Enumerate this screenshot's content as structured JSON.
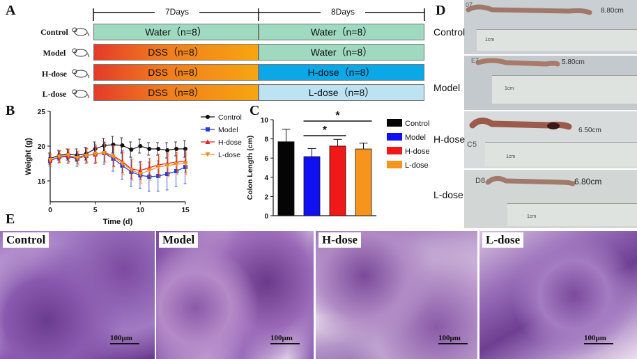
{
  "panels": {
    "a": "A",
    "b": "B",
    "c": "C",
    "d": "D",
    "e": "E"
  },
  "design": {
    "periods": [
      "7Days",
      "8Days"
    ],
    "rows": [
      {
        "group": "Control",
        "phase1": "Water（n=8）",
        "phase2": "Water（n=8）"
      },
      {
        "group": "Model",
        "phase1": "DSS（n=8）",
        "phase2": "Water（n=8）"
      },
      {
        "group": "H-dose",
        "phase1": "DSS（n=8）",
        "phase2": "H-dose（n=8）"
      },
      {
        "group": "L-dose",
        "phase1": "DSS（n=8）",
        "phase2": "L-dose（n=8）"
      }
    ]
  },
  "chart_data": [
    {
      "type": "line",
      "xlabel": "Time  (d)",
      "ylabel": "Weight  (g)",
      "xlim": [
        0,
        15
      ],
      "ylim": [
        12,
        25
      ],
      "xticks": [
        0,
        5,
        10,
        15
      ],
      "yticks": [
        15,
        20,
        25
      ],
      "x": [
        0,
        1,
        2,
        3,
        4,
        5,
        6,
        7,
        8,
        9,
        10,
        11,
        12,
        13,
        14,
        15
      ],
      "legend_position": "right",
      "series": [
        {
          "name": "Control",
          "color": "#111111",
          "marker": "circle",
          "values": [
            18.2,
            18.7,
            18.8,
            18.7,
            18.9,
            19.6,
            20.1,
            20.2,
            20.1,
            19.5,
            20.0,
            19.6,
            19.6,
            19.4,
            19.6,
            19.6
          ],
          "errors": [
            0.8,
            0.7,
            0.8,
            0.9,
            0.9,
            1.0,
            1.0,
            1.2,
            1.1,
            1.1,
            1.0,
            0.9,
            0.9,
            1.1,
            1.0,
            1.2
          ]
        },
        {
          "name": "Model",
          "color": "#1a3fd6",
          "marker": "square",
          "values": [
            17.9,
            18.4,
            18.5,
            18.2,
            18.6,
            18.9,
            19.0,
            18.2,
            17.2,
            16.3,
            15.8,
            15.6,
            15.7,
            16.0,
            16.4,
            17.0
          ],
          "errors": [
            0.8,
            0.8,
            1.0,
            1.1,
            1.1,
            1.4,
            1.6,
            1.8,
            2.0,
            2.1,
            1.9,
            2.1,
            2.2,
            2.3,
            2.2,
            2.4
          ]
        },
        {
          "name": "H-dose",
          "color": "#e02020",
          "marker": "triangle",
          "values": [
            18.0,
            18.5,
            18.6,
            18.4,
            18.7,
            18.8,
            19.1,
            18.6,
            17.8,
            16.7,
            16.5,
            16.9,
            17.3,
            17.5,
            17.7,
            17.8
          ],
          "errors": [
            0.9,
            0.8,
            0.9,
            0.9,
            1.0,
            1.2,
            1.4,
            1.5,
            1.6,
            1.4,
            1.3,
            1.3,
            1.5,
            1.5,
            1.4,
            1.6
          ]
        },
        {
          "name": "L-dose",
          "color": "#f0902a",
          "marker": "triangle-down",
          "values": [
            18.0,
            18.5,
            18.7,
            18.3,
            18.6,
            18.9,
            19.0,
            18.5,
            17.5,
            16.6,
            16.0,
            16.5,
            17.0,
            17.2,
            17.4,
            17.5
          ],
          "errors": [
            0.9,
            0.9,
            0.9,
            1.0,
            1.0,
            1.2,
            1.3,
            1.5,
            1.6,
            1.5,
            1.4,
            1.4,
            1.5,
            1.6,
            1.5,
            1.6
          ]
        }
      ]
    },
    {
      "type": "bar",
      "ylabel": "Colon Length  (cm)",
      "ylim": [
        0,
        10
      ],
      "yticks": [
        0,
        2,
        4,
        6,
        8,
        10
      ],
      "categories": [
        "Control",
        "Model",
        "H-dose",
        "L-dose"
      ],
      "values": [
        7.7,
        6.15,
        7.25,
        6.95
      ],
      "errors": [
        1.3,
        0.85,
        0.7,
        0.6
      ],
      "colors": [
        "#050505",
        "#1010f0",
        "#f01818",
        "#f7941d"
      ],
      "significance": [
        {
          "from": "Model",
          "to": "H-dose",
          "label": "*"
        },
        {
          "from": "Model",
          "to": "L-dose",
          "label": "*"
        }
      ],
      "legend_position": "right"
    }
  ],
  "photos": [
    {
      "label": "Control",
      "annotation": "8.80cm",
      "specimen": "07"
    },
    {
      "label": "Model",
      "annotation": "5.80cm",
      "specimen": "E7"
    },
    {
      "label": "H-dose",
      "annotation": "6.50cm",
      "specimen": "C5"
    },
    {
      "label": "L-dose",
      "annotation": "6.80cm",
      "specimen": "D8"
    }
  ],
  "ruler_unit": "1cm",
  "histology": [
    {
      "label": "Control",
      "scale": "100μm"
    },
    {
      "label": "Model",
      "scale": "100μm"
    },
    {
      "label": "H-dose",
      "scale": "100μm"
    },
    {
      "label": "L-dose",
      "scale": "100μm"
    }
  ]
}
